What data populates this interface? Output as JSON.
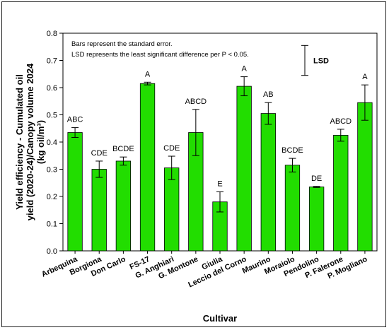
{
  "chart_data": {
    "type": "bar",
    "xlabel": "Cultivar",
    "ylabel_lines": [
      "Yield efficiency - Cumulated oil",
      "yield (2020-24)/Canopy volume 2024",
      "(kg oil/m³)"
    ],
    "ylim": [
      0,
      0.8
    ],
    "yticks": [
      "0.0",
      "0.1",
      "0.2",
      "0.3",
      "0.4",
      "0.5",
      "0.6",
      "0.7",
      "0.8"
    ],
    "categories": [
      "Arbequina",
      "Borgiona",
      "Don Carlo",
      "FS-17",
      "G. Anghiari",
      "G. Montone",
      "Giulia",
      "Leccio del Corno",
      "Maurino",
      "Moraiolo",
      "Pendolino",
      "P. Falerone",
      "P. Mogliano"
    ],
    "values": [
      0.435,
      0.3,
      0.33,
      0.615,
      0.305,
      0.435,
      0.18,
      0.605,
      0.505,
      0.315,
      0.235,
      0.425,
      0.545
    ],
    "errors": [
      0.018,
      0.03,
      0.015,
      0.005,
      0.043,
      0.085,
      0.037,
      0.035,
      0.04,
      0.025,
      0.002,
      0.022,
      0.065
    ],
    "significance": [
      "ABC",
      "CDE",
      "BCDE",
      "A",
      "CDE",
      "ABCD",
      "E",
      "A",
      "AB",
      "BCDE",
      "DE",
      "ABCD",
      "A"
    ],
    "lsd": {
      "label": "LSD",
      "top": 0.755,
      "bottom": 0.645
    },
    "annotations": [
      "Bars represent the standard error.",
      "LSD represents the least significant difference per P < 0.05."
    ],
    "bar_color": "#22dd00",
    "grid": false
  }
}
